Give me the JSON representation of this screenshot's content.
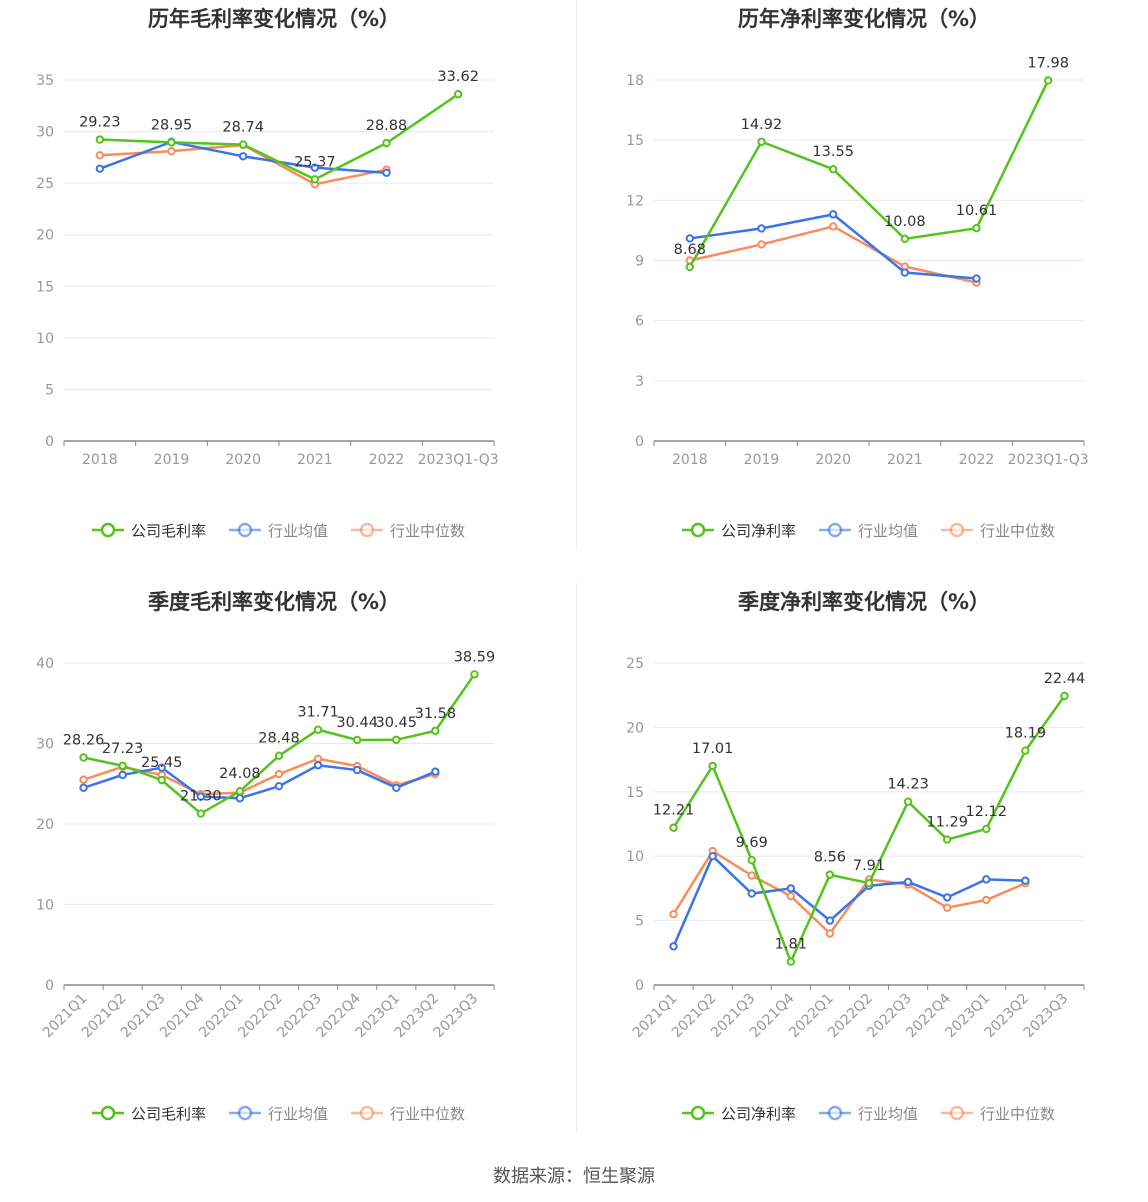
{
  "colors": {
    "company": "#52c41a",
    "avg": "#3b73e8",
    "median": "#fa8c5a",
    "grid": "#e6e8f5",
    "axis": "#999999",
    "label": "#333333"
  },
  "footer": "数据来源：恒生聚源",
  "chart_data": [
    {
      "type": "line",
      "title": "历年毛利率变化情况（%）",
      "categories": [
        "2018",
        "2019",
        "2020",
        "2021",
        "2022",
        "2023Q1-Q3"
      ],
      "ylim": [
        0,
        35
      ],
      "yticks": [
        0,
        5,
        10,
        15,
        20,
        25,
        30,
        35
      ],
      "rotate": false,
      "series": [
        {
          "name": "公司毛利率",
          "key": "company",
          "values": [
            29.23,
            28.95,
            28.74,
            25.37,
            28.88,
            33.62
          ],
          "labels": true
        },
        {
          "name": "行业均值",
          "key": "avg",
          "values": [
            26.4,
            29.0,
            27.6,
            26.5,
            26.0,
            null
          ]
        },
        {
          "name": "行业中位数",
          "key": "median",
          "values": [
            27.7,
            28.1,
            28.7,
            24.9,
            26.3,
            null
          ]
        }
      ]
    },
    {
      "type": "line",
      "title": "历年净利率变化情况（%）",
      "categories": [
        "2018",
        "2019",
        "2020",
        "2021",
        "2022",
        "2023Q1-Q3"
      ],
      "ylim": [
        0,
        18
      ],
      "yticks": [
        0,
        3,
        6,
        9,
        12,
        15,
        18
      ],
      "rotate": false,
      "series": [
        {
          "name": "公司净利率",
          "key": "company",
          "values": [
            8.68,
            14.92,
            13.55,
            10.08,
            10.61,
            17.98
          ],
          "labels": true
        },
        {
          "name": "行业均值",
          "key": "avg",
          "values": [
            10.1,
            10.6,
            11.3,
            8.4,
            8.1,
            null
          ]
        },
        {
          "name": "行业中位数",
          "key": "median",
          "values": [
            9.0,
            9.8,
            10.7,
            8.7,
            7.9,
            null
          ]
        }
      ]
    },
    {
      "type": "line",
      "title": "季度毛利率变化情况（%）",
      "categories": [
        "2021Q1",
        "2021Q2",
        "2021Q3",
        "2021Q4",
        "2022Q1",
        "2022Q2",
        "2022Q3",
        "2022Q4",
        "2023Q1",
        "2023Q2",
        "2023Q3"
      ],
      "ylim": [
        0,
        40
      ],
      "yticks": [
        0,
        10,
        20,
        30,
        40
      ],
      "rotate": true,
      "series": [
        {
          "name": "公司毛利率",
          "key": "company",
          "values": [
            28.26,
            27.23,
            25.45,
            21.3,
            24.08,
            28.48,
            31.71,
            30.44,
            30.45,
            31.58,
            38.59
          ],
          "labels": true
        },
        {
          "name": "行业均值",
          "key": "avg",
          "values": [
            24.5,
            26.1,
            27.0,
            23.4,
            23.2,
            24.7,
            27.3,
            26.7,
            24.5,
            26.5,
            null
          ]
        },
        {
          "name": "行业中位数",
          "key": "median",
          "values": [
            25.5,
            27.1,
            26.1,
            23.7,
            23.9,
            26.2,
            28.1,
            27.2,
            24.8,
            26.2,
            null
          ]
        }
      ]
    },
    {
      "type": "line",
      "title": "季度净利率变化情况（%）",
      "categories": [
        "2021Q1",
        "2021Q2",
        "2021Q3",
        "2021Q4",
        "2022Q1",
        "2022Q2",
        "2022Q3",
        "2022Q4",
        "2023Q1",
        "2023Q2",
        "2023Q3"
      ],
      "ylim": [
        0,
        25
      ],
      "yticks": [
        0,
        5,
        10,
        15,
        20,
        25
      ],
      "rotate": true,
      "series": [
        {
          "name": "公司净利率",
          "key": "company",
          "values": [
            12.21,
            17.01,
            9.69,
            1.81,
            8.56,
            7.91,
            14.23,
            11.29,
            12.12,
            18.19,
            22.44
          ],
          "labels": true
        },
        {
          "name": "行业均值",
          "key": "avg",
          "values": [
            3.0,
            10.0,
            7.1,
            7.5,
            5.0,
            7.7,
            8.0,
            6.8,
            8.2,
            8.1,
            null
          ]
        },
        {
          "name": "行业中位数",
          "key": "median",
          "values": [
            5.5,
            10.4,
            8.5,
            6.9,
            4.0,
            8.2,
            7.8,
            6.0,
            6.6,
            7.9,
            null
          ]
        }
      ]
    }
  ]
}
